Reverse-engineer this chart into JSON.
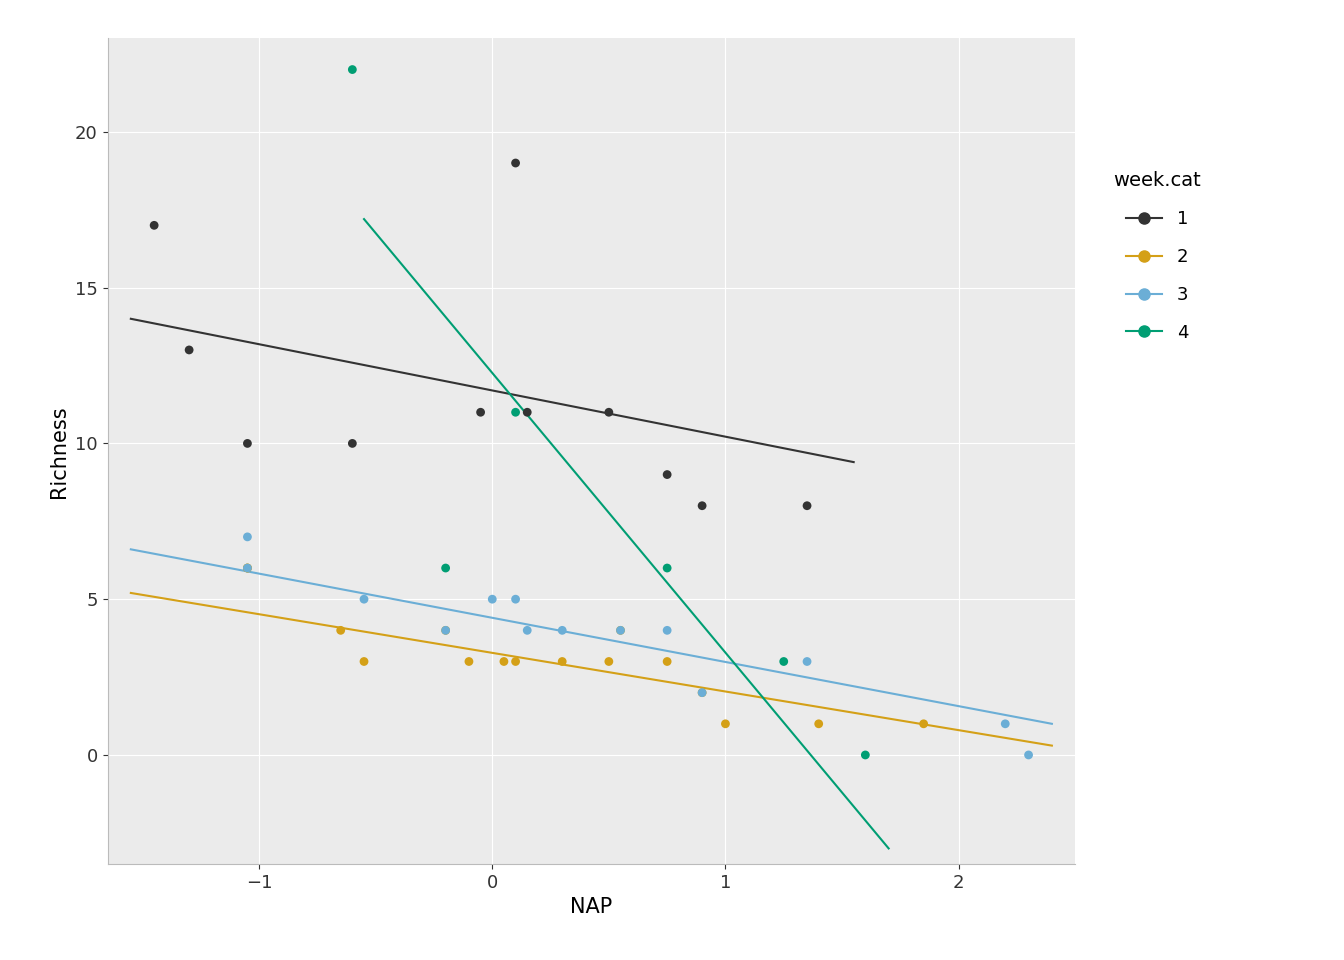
{
  "title": "",
  "xlabel": "NAP",
  "ylabel": "Richness",
  "legend_title": "week.cat",
  "background_color": "#ffffff",
  "panel_background": "#EBEBEB",
  "grid_color": "#ffffff",
  "xlim": [
    -1.65,
    2.5
  ],
  "ylim": [
    -3.5,
    23
  ],
  "xticks": [
    -1,
    0,
    1,
    2
  ],
  "yticks": [
    0,
    5,
    10,
    15,
    20
  ],
  "colors": {
    "1": "#333333",
    "2": "#D4A017",
    "3": "#6BAED6",
    "4": "#009E73"
  },
  "points": {
    "1": [
      [
        -1.45,
        17
      ],
      [
        -1.3,
        13
      ],
      [
        -1.05,
        10
      ],
      [
        -0.6,
        10
      ],
      [
        -0.05,
        11
      ],
      [
        0.1,
        19
      ],
      [
        0.15,
        11
      ],
      [
        0.5,
        11
      ],
      [
        0.75,
        9
      ],
      [
        0.9,
        8
      ],
      [
        1.35,
        8
      ]
    ],
    "2": [
      [
        -1.05,
        6
      ],
      [
        -1.05,
        6
      ],
      [
        -0.65,
        4
      ],
      [
        -0.55,
        3
      ],
      [
        -0.2,
        4
      ],
      [
        -0.1,
        3
      ],
      [
        0.05,
        3
      ],
      [
        0.1,
        3
      ],
      [
        0.3,
        3
      ],
      [
        0.5,
        3
      ],
      [
        0.55,
        4
      ],
      [
        0.75,
        3
      ],
      [
        0.9,
        2
      ],
      [
        1.0,
        1
      ],
      [
        1.4,
        1
      ],
      [
        1.85,
        1
      ]
    ],
    "3": [
      [
        -1.05,
        7
      ],
      [
        -1.05,
        6
      ],
      [
        -0.55,
        5
      ],
      [
        -0.2,
        4
      ],
      [
        0.0,
        5
      ],
      [
        0.1,
        5
      ],
      [
        0.15,
        4
      ],
      [
        0.3,
        4
      ],
      [
        0.55,
        4
      ],
      [
        0.75,
        4
      ],
      [
        0.9,
        2
      ],
      [
        1.35,
        3
      ],
      [
        2.2,
        1
      ],
      [
        2.3,
        0
      ]
    ],
    "4": [
      [
        -0.6,
        22
      ],
      [
        -0.2,
        6
      ],
      [
        0.1,
        11
      ],
      [
        0.75,
        6
      ],
      [
        1.25,
        3
      ],
      [
        1.6,
        0
      ]
    ]
  },
  "lines": {
    "1": {
      "x0": -1.55,
      "x1": 1.55,
      "y0": 14.0,
      "y1": 9.4
    },
    "2": {
      "x0": -1.55,
      "x1": 2.4,
      "y0": 5.2,
      "y1": 0.3
    },
    "3": {
      "x0": -1.55,
      "x1": 2.4,
      "y0": 6.6,
      "y1": 1.0
    },
    "4": {
      "x0": -0.55,
      "x1": 1.7,
      "y0": 17.2,
      "y1": -3.0
    }
  },
  "marker_size": 40,
  "line_width": 1.5,
  "axis_fontsize": 15,
  "tick_fontsize": 13,
  "legend_fontsize": 13,
  "legend_title_fontsize": 14
}
